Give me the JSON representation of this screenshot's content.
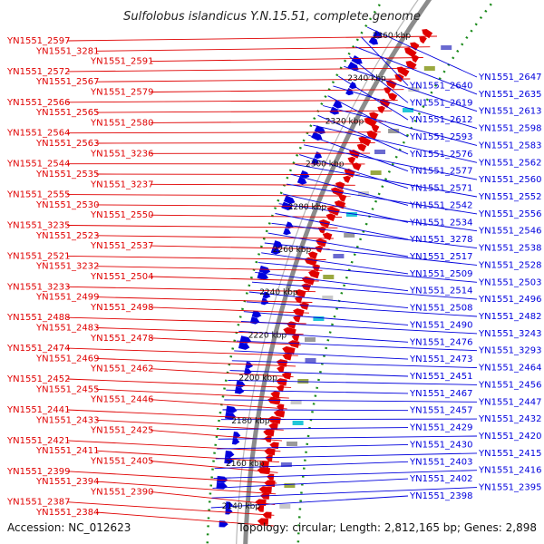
{
  "title": "Sulfolobus islandicus Y.N.15.51, complete genome",
  "accession": "Accession: NC_012623",
  "summary": "Topology: circular; Length: 2,812,165 bp; Genes: 2,898",
  "colors": {
    "forward": "#e00000",
    "reverse": "#0000dd",
    "backbone": "#8c8c8c",
    "gc_dots": "#1a8a1a"
  },
  "kbp_labels": [
    "2360 kbp",
    "2340 kbp",
    "2320 kbp",
    "2300 kbp",
    "2280 kbp",
    "2260 kbp",
    "2240 kbp",
    "2220 kbp",
    "2200 kbp",
    "2180 kbp",
    "2160 kbp",
    "2140 kbp"
  ],
  "left_labels": [
    "YN1551_2597",
    "YN1551_3281",
    "YN1551_2591",
    "YN1551_2572",
    "YN1551_2567",
    "YN1551_2579",
    "YN1551_2566",
    "YN1551_2565",
    "YN1551_2580",
    "YN1551_2564",
    "YN1551_2563",
    "YN1551_3236",
    "YN1551_2544",
    "YN1551_2535",
    "YN1551_3237",
    "YN1551_2555",
    "YN1551_2530",
    "YN1551_2550",
    "YN1551_3235",
    "YN1551_2523",
    "YN1551_2537",
    "YN1551_2521",
    "YN1551_3232",
    "YN1551_2504",
    "YN1551_3233",
    "YN1551_2499",
    "YN1551_2498",
    "YN1551_2488",
    "YN1551_2483",
    "YN1551_2478",
    "YN1551_2474",
    "YN1551_2469",
    "YN1551_2462",
    "YN1551_2452",
    "YN1551_2455",
    "YN1551_2446",
    "YN1551_2441",
    "YN1551_2433",
    "YN1551_2425",
    "YN1551_2421",
    "YN1551_2411",
    "YN1551_2405",
    "YN1551_2399",
    "YN1551_2394",
    "YN1551_2390",
    "YN1551_2387",
    "YN1551_2384"
  ],
  "right_labels": [
    "YN1551_2647",
    "YN1551_2640",
    "YN1551_2635",
    "YN1551_2619",
    "YN1551_2613",
    "YN1551_2612",
    "YN1551_2598",
    "YN1551_2593",
    "YN1551_2583",
    "YN1551_2576",
    "YN1551_2562",
    "YN1551_2577",
    "YN1551_2560",
    "YN1551_2571",
    "YN1551_2552",
    "YN1551_2542",
    "YN1551_2556",
    "YN1551_2534",
    "YN1551_2546",
    "YN1551_3278",
    "YN1551_2538",
    "YN1551_2517",
    "YN1551_2528",
    "YN1551_2509",
    "YN1551_2503",
    "YN1551_2514",
    "YN1551_2496",
    "YN1551_2508",
    "YN1551_2482",
    "YN1551_2490",
    "YN1551_3243",
    "YN1551_2476",
    "YN1551_3293",
    "YN1551_2473",
    "YN1551_2464",
    "YN1551_2451",
    "YN1551_2456",
    "YN1551_2467",
    "YN1551_2447",
    "YN1551_2457",
    "YN1551_2432",
    "YN1551_2429",
    "YN1551_2420",
    "YN1551_2430",
    "YN1551_2415",
    "YN1551_2403",
    "YN1551_2416",
    "YN1551_2402",
    "YN1551_2395",
    "YN1551_2398"
  ]
}
